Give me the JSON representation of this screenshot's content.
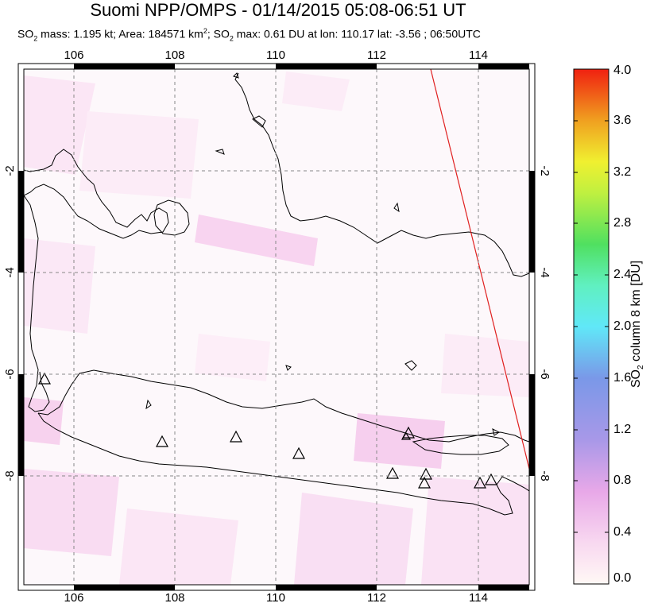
{
  "title": "Suomi NPP/OMPS - 01/14/2015 05:08-06:51 UT",
  "subtitle": {
    "p1": "SO",
    "s1": "2",
    "p2": " mass: 1.195 kt; Area: 184571 km",
    "s2": "2",
    "p3": "; SO",
    "s3": "2",
    "p4": " max: 0.61 DU at lon: 110.17 lat: -3.56 ; 06:50UTC"
  },
  "map": {
    "lon_ticks": [
      "106",
      "108",
      "110",
      "112",
      "114"
    ],
    "lat_ticks": [
      "-2",
      "-4",
      "-6",
      "-8"
    ],
    "volcano_icon": "triangle-icon",
    "volcano_count": 11
  },
  "colorbar": {
    "label_pre": "SO",
    "label_sub": "2",
    "label_post": " column 8 km [DU]",
    "ticks": [
      "4.0",
      "3.6",
      "3.2",
      "2.8",
      "2.4",
      "2.0",
      "1.6",
      "1.2",
      "0.8",
      "0.4",
      "0.0"
    ],
    "min": 0.0,
    "max": 4.0,
    "colors": [
      "#fff8f5",
      "#f8c8f0",
      "#c8a0f0",
      "#8a8ae0",
      "#5fd0f0",
      "#60f0d0",
      "#70f070",
      "#c8f040",
      "#f0f040",
      "#f0a020",
      "#f04010"
    ]
  }
}
